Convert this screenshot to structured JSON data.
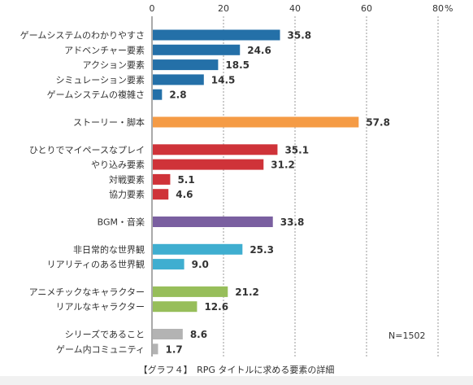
{
  "chart_data": {
    "type": "bar",
    "orientation": "horizontal",
    "xlim": [
      0,
      80
    ],
    "x_ticks": [
      "0",
      "20",
      "40",
      "60",
      "80"
    ],
    "x_unit": "%",
    "grid": true,
    "categories": [
      "ゲームシステムのわかりやすさ",
      "アドベンチャー要素",
      "アクション要素",
      "シミュレーション要素",
      "ゲームシステムの複雑さ",
      "ストーリー・脚本",
      "ひとりでマイペースなプレイ",
      "やり込み要素",
      "対戦要素",
      "協力要素",
      "BGM・音楽",
      "非日常的な世界観",
      "リアリティのある世界観",
      "アニメチックなキャラクター",
      "リアルなキャラクター",
      "シリーズであること",
      "ゲーム内コミュニティ"
    ],
    "values": [
      35.8,
      24.6,
      18.5,
      14.5,
      2.8,
      57.8,
      35.1,
      31.2,
      5.1,
      4.6,
      33.8,
      25.3,
      9.0,
      21.2,
      12.6,
      8.6,
      1.7
    ],
    "value_labels": [
      "35.8",
      "24.6",
      "18.5",
      "14.5",
      "2.8",
      "57.8",
      "35.1",
      "31.2",
      "5.1",
      "4.6",
      "33.8",
      "25.3",
      "9.0",
      "21.2",
      "12.6",
      "8.6",
      "1.7"
    ],
    "groups": [
      0,
      0,
      0,
      0,
      0,
      1,
      2,
      2,
      2,
      2,
      3,
      4,
      4,
      5,
      5,
      6,
      6
    ],
    "group_colors": [
      "#2470a8",
      "#f59b45",
      "#cf3339",
      "#7a5fa0",
      "#3faed0",
      "#97be5a",
      "#b3b3b3"
    ],
    "annotation": "N=1502",
    "caption": "【グラフ４】　RPG タイトルに求める要素の詳細"
  }
}
